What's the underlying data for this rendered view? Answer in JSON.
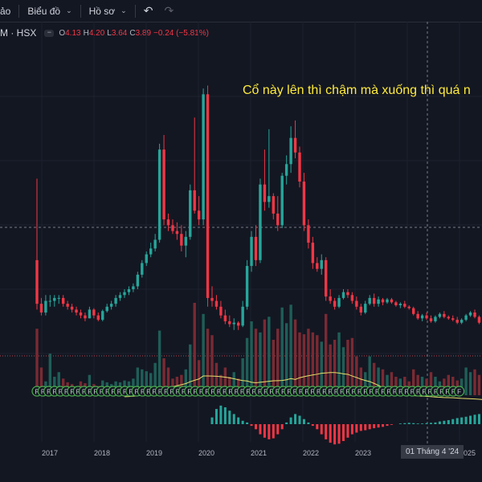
{
  "toolbar": {
    "item1_label": "ảo",
    "item2_label": "Biểu đồ",
    "item3_label": "Hồ sơ",
    "chevron_icon": "chevron-down-icon",
    "undo_icon": "undo-icon",
    "redo_icon": "redo-icon"
  },
  "legend": {
    "symbol": "M · HSX",
    "open_key": "O",
    "open": "4.13",
    "high_key": "H",
    "high": "4.20",
    "low_key": "L",
    "low": "3.64",
    "close_key": "C",
    "close": "3.89",
    "change": "−0.24 (−5.81%)"
  },
  "annotation": "Cổ này lên thì chậm mà xuống thì quá n",
  "crosshair_date": "01 Tháng 4 '24",
  "colors": {
    "background": "#131722",
    "up": "#26a69a",
    "down": "#f23645",
    "moving_average": "#e8e06a",
    "annotation": "#ffeb3b",
    "marker_f": "#4caf50",
    "marker_d": "#9c27b0"
  },
  "chart_data": {
    "type": "candlestick",
    "interval": "monthly",
    "x_ticks": [
      "2017",
      "2018",
      "2019",
      "2020",
      "2021",
      "2022",
      "2023",
      "2025"
    ],
    "ohlc": [
      [
        4.6,
        7.4,
        2.9,
        3.1
      ],
      [
        3.1,
        3.3,
        2.7,
        2.8
      ],
      [
        2.8,
        3.4,
        2.7,
        3.2
      ],
      [
        3.2,
        3.4,
        3.0,
        3.2
      ],
      [
        3.2,
        3.4,
        3.0,
        3.3
      ],
      [
        3.3,
        3.4,
        3.1,
        3.3
      ],
      [
        3.3,
        3.4,
        3.0,
        3.1
      ],
      [
        3.1,
        3.2,
        2.9,
        3.0
      ],
      [
        3.0,
        3.1,
        2.8,
        2.9
      ],
      [
        2.9,
        3.0,
        2.7,
        2.8
      ],
      [
        2.8,
        2.9,
        2.6,
        2.7
      ],
      [
        2.7,
        2.8,
        2.5,
        2.6
      ],
      [
        2.6,
        3.0,
        2.6,
        2.9
      ],
      [
        2.9,
        2.95,
        2.6,
        2.7
      ],
      [
        2.7,
        2.8,
        2.5,
        2.55
      ],
      [
        2.55,
        2.9,
        2.5,
        2.85
      ],
      [
        2.85,
        3.1,
        2.8,
        3.0
      ],
      [
        3.0,
        3.2,
        2.9,
        3.1
      ],
      [
        3.1,
        3.4,
        3.0,
        3.3
      ],
      [
        3.3,
        3.5,
        3.2,
        3.4
      ],
      [
        3.4,
        3.6,
        3.3,
        3.5
      ],
      [
        3.5,
        3.7,
        3.4,
        3.6
      ],
      [
        3.6,
        3.8,
        3.5,
        3.7
      ],
      [
        3.7,
        4.2,
        3.6,
        4.1
      ],
      [
        4.1,
        4.6,
        4.0,
        4.5
      ],
      [
        4.5,
        4.9,
        4.4,
        4.8
      ],
      [
        4.8,
        5.2,
        4.7,
        5.0
      ],
      [
        5.0,
        5.5,
        4.9,
        5.3
      ],
      [
        5.3,
        8.6,
        5.2,
        8.4
      ],
      [
        8.4,
        8.9,
        5.8,
        6.0
      ],
      [
        6.0,
        6.2,
        5.6,
        5.8
      ],
      [
        5.8,
        6.0,
        5.5,
        5.6
      ],
      [
        5.6,
        5.9,
        5.3,
        5.5
      ],
      [
        5.5,
        5.8,
        4.9,
        5.1
      ],
      [
        5.1,
        5.6,
        4.7,
        5.4
      ],
      [
        5.4,
        7.2,
        5.3,
        7.0
      ],
      [
        7.0,
        9.5,
        6.2,
        6.3
      ],
      [
        6.3,
        6.8,
        5.8,
        6.0
      ],
      [
        6.0,
        10.5,
        5.8,
        10.3
      ],
      [
        10.3,
        10.6,
        3.0,
        3.3
      ],
      [
        3.3,
        3.7,
        3.0,
        3.2
      ],
      [
        3.2,
        3.4,
        2.9,
        3.0
      ],
      [
        3.0,
        3.2,
        2.6,
        2.7
      ],
      [
        2.7,
        2.9,
        2.4,
        2.5
      ],
      [
        2.5,
        2.7,
        2.3,
        2.4
      ],
      [
        2.4,
        2.6,
        2.2,
        2.45
      ],
      [
        2.45,
        2.5,
        2.2,
        2.35
      ],
      [
        2.35,
        3.2,
        2.3,
        3.0
      ],
      [
        3.0,
        4.6,
        2.9,
        4.4
      ],
      [
        4.4,
        5.6,
        4.2,
        5.4
      ],
      [
        5.4,
        5.8,
        4.4,
        4.6
      ],
      [
        4.6,
        7.4,
        4.5,
        7.2
      ],
      [
        7.2,
        8.4,
        6.3,
        6.6
      ],
      [
        6.6,
        9.1,
        6.4,
        6.8
      ],
      [
        6.8,
        6.9,
        6.0,
        6.2
      ],
      [
        6.2,
        6.8,
        5.6,
        5.8
      ],
      [
        5.8,
        7.6,
        5.7,
        7.5
      ],
      [
        7.5,
        8.2,
        7.2,
        7.9
      ],
      [
        7.9,
        9.2,
        7.6,
        8.8
      ],
      [
        8.8,
        9.4,
        8.1,
        8.3
      ],
      [
        8.3,
        8.5,
        7.1,
        7.3
      ],
      [
        7.3,
        7.6,
        5.6,
        5.8
      ],
      [
        5.8,
        6.0,
        5.0,
        5.2
      ],
      [
        5.2,
        5.4,
        4.3,
        4.5
      ],
      [
        4.5,
        4.7,
        4.2,
        4.3
      ],
      [
        4.3,
        4.8,
        4.1,
        4.6
      ],
      [
        4.6,
        4.7,
        3.2,
        3.35
      ],
      [
        3.35,
        3.6,
        3.1,
        3.2
      ],
      [
        3.2,
        3.3,
        2.9,
        3.0
      ],
      [
        3.0,
        3.4,
        2.95,
        3.3
      ],
      [
        3.3,
        3.6,
        3.25,
        3.5
      ],
      [
        3.5,
        3.6,
        3.3,
        3.4
      ],
      [
        3.4,
        3.5,
        3.1,
        3.2
      ],
      [
        3.2,
        3.35,
        2.9,
        3.0
      ],
      [
        3.0,
        3.1,
        2.7,
        2.8
      ],
      [
        2.8,
        3.2,
        2.75,
        3.1
      ],
      [
        3.1,
        3.4,
        3.05,
        3.3
      ],
      [
        3.3,
        3.45,
        3.0,
        3.1
      ],
      [
        3.1,
        3.35,
        3.0,
        3.25
      ],
      [
        3.25,
        3.3,
        3.05,
        3.15
      ],
      [
        3.15,
        3.3,
        3.1,
        3.25
      ],
      [
        3.25,
        3.3,
        3.1,
        3.15
      ],
      [
        3.15,
        3.2,
        3.0,
        3.05
      ],
      [
        3.05,
        3.15,
        2.95,
        3.1
      ],
      [
        3.1,
        3.2,
        2.95,
        3.0
      ],
      [
        3.0,
        3.05,
        2.9,
        2.95
      ],
      [
        2.95,
        3.0,
        2.7,
        2.75
      ],
      [
        2.75,
        2.85,
        2.55,
        2.6
      ],
      [
        2.6,
        2.75,
        2.5,
        2.7
      ],
      [
        2.7,
        2.8,
        2.55,
        2.6
      ],
      [
        2.6,
        2.7,
        2.45,
        2.5
      ],
      [
        2.5,
        2.7,
        2.45,
        2.65
      ],
      [
        2.65,
        2.8,
        2.6,
        2.75
      ],
      [
        2.75,
        2.85,
        2.6,
        2.65
      ],
      [
        2.65,
        2.7,
        2.55,
        2.6
      ],
      [
        2.6,
        2.7,
        2.5,
        2.55
      ],
      [
        2.55,
        2.65,
        2.4,
        2.45
      ],
      [
        2.45,
        2.6,
        2.4,
        2.55
      ],
      [
        2.55,
        2.75,
        2.5,
        2.7
      ],
      [
        2.7,
        2.85,
        2.65,
        2.8
      ],
      [
        2.8,
        2.9,
        2.6,
        2.65
      ],
      [
        2.65,
        2.7,
        2.4,
        2.45
      ],
      [
        2.45,
        2.5,
        2.3,
        2.35
      ]
    ],
    "volume": [
      0.72,
      0.3,
      0.15,
      0.45,
      0.2,
      0.25,
      0.18,
      0.14,
      0.12,
      0.1,
      0.15,
      0.13,
      0.22,
      0.12,
      0.1,
      0.16,
      0.14,
      0.12,
      0.15,
      0.14,
      0.16,
      0.15,
      0.18,
      0.3,
      0.28,
      0.26,
      0.24,
      0.35,
      0.7,
      0.4,
      0.3,
      0.18,
      0.2,
      0.22,
      0.28,
      0.55,
      1.0,
      0.38,
      0.88,
      0.72,
      0.65,
      0.35,
      0.22,
      0.3,
      0.2,
      0.25,
      0.18,
      0.4,
      0.62,
      0.8,
      0.72,
      0.68,
      0.82,
      0.85,
      0.6,
      0.72,
      0.95,
      0.78,
      0.98,
      0.82,
      0.68,
      0.66,
      0.72,
      0.68,
      0.65,
      0.58,
      0.88,
      0.55,
      0.6,
      0.68,
      0.52,
      0.6,
      0.62,
      0.42,
      0.3,
      0.25,
      0.42,
      0.35,
      0.3,
      0.28,
      0.22,
      0.25,
      0.2,
      0.18,
      0.2,
      0.15,
      0.28,
      0.22,
      0.2,
      0.18,
      0.25,
      0.2,
      0.15,
      0.18,
      0.22,
      0.2,
      0.16,
      0.18,
      0.3,
      0.25,
      0.28,
      0.22,
      0.2
    ],
    "oscillator": [
      0,
      0,
      0,
      0,
      0,
      0,
      0,
      0,
      0,
      0,
      0,
      0,
      0,
      0,
      0,
      0,
      0,
      0,
      0,
      0,
      0,
      0,
      0,
      0,
      0,
      0,
      0,
      0,
      0,
      0,
      0,
      0,
      0,
      0,
      0,
      0,
      0,
      0,
      0,
      0,
      0.2,
      0.45,
      0.55,
      0.5,
      0.4,
      0.3,
      0.2,
      0.1,
      0.05,
      -0.05,
      -0.15,
      -0.3,
      -0.4,
      -0.45,
      -0.42,
      -0.3,
      -0.15,
      0.05,
      0.2,
      0.3,
      0.25,
      0.15,
      0.05,
      -0.05,
      -0.15,
      -0.3,
      -0.45,
      -0.55,
      -0.6,
      -0.58,
      -0.5,
      -0.4,
      -0.3,
      -0.25,
      -0.2,
      -0.18,
      -0.15,
      -0.12,
      -0.1,
      -0.08,
      -0.05,
      -0.02,
      0.0,
      0.02,
      0.03,
      0.04,
      0.03,
      0.02,
      0.02,
      0.03,
      0.04,
      0.05,
      0.08,
      0.1,
      0.12,
      0.15,
      0.18,
      0.2,
      0.22,
      0.25,
      0.28,
      0.3,
      0.32
    ],
    "markers_f": [
      0,
      1,
      2,
      3,
      4,
      5,
      6,
      7,
      8,
      9,
      10,
      11,
      12,
      13,
      14,
      15,
      16,
      17,
      18,
      19,
      20,
      21,
      22,
      23,
      24,
      25,
      26,
      27,
      28,
      29,
      30,
      31,
      32,
      33,
      34,
      35,
      36,
      37,
      38,
      39,
      40,
      41,
      42,
      43,
      44,
      45,
      46,
      47,
      48,
      49,
      50,
      51,
      52,
      53,
      54,
      55,
      56,
      57,
      58,
      59,
      60,
      61,
      62,
      63,
      64,
      65,
      66,
      67,
      68,
      69,
      70,
      71,
      72
    ],
    "ylim": [
      2.0,
      11.0
    ]
  }
}
